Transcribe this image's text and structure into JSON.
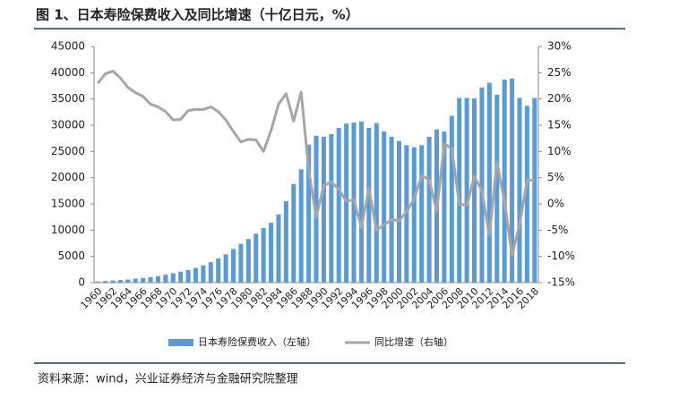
{
  "chart_data": {
    "type": "bar_line",
    "title": "图 1、日本寿险保费收入及同比增速（十亿日元，%）",
    "source": "资料来源：wind，兴业证券经济与金融研究院整理",
    "categories": [
      "1960",
      null,
      "1962",
      null,
      "1964",
      null,
      "1966",
      null,
      "1968",
      null,
      "1970",
      null,
      "1972",
      null,
      "1974",
      null,
      "1976",
      null,
      "1978",
      null,
      "1980",
      null,
      "1982",
      null,
      "1984",
      null,
      "1986",
      null,
      "1988",
      null,
      "1990",
      null,
      "1992",
      null,
      "1994",
      null,
      "1996",
      null,
      "1998",
      null,
      "2000",
      null,
      "2002",
      null,
      "2004",
      null,
      "2006",
      null,
      "2008",
      null,
      "2010",
      null,
      "2012",
      null,
      "2014",
      null,
      "2016",
      null,
      "2018"
    ],
    "series": [
      {
        "name": "日本寿险保费收入（左轴）",
        "color": "#5b9bd5",
        "kind": "bar",
        "values": [
          200,
          300,
          400,
          500,
          600,
          750,
          900,
          1050,
          1250,
          1500,
          1800,
          2100,
          2400,
          2800,
          3300,
          3900,
          4600,
          5400,
          6400,
          7400,
          8300,
          9300,
          10400,
          11400,
          13000,
          15500,
          18800,
          21600,
          26300,
          28000,
          27800,
          28300,
          29500,
          30300,
          30500,
          30700,
          29500,
          30400,
          28800,
          27800,
          27000,
          26200,
          25800,
          26200,
          27800,
          29200,
          28800,
          31800,
          35200,
          35200,
          35100,
          37200,
          38100,
          35800,
          38700,
          38900,
          35200,
          33700,
          35200
        ]
      },
      {
        "name": "同比增速（右轴）",
        "color": "#a6a6a6",
        "kind": "line",
        "axis": "y2",
        "values": [
          23,
          24.8,
          25.3,
          24,
          22.2,
          21.2,
          20.5,
          19,
          18.5,
          17.6,
          16,
          16.1,
          17.8,
          18,
          18,
          18.5,
          17.6,
          16,
          13.8,
          11.8,
          12.3,
          12.2,
          10,
          14,
          19,
          21,
          15.8,
          21.3,
          6.5,
          -2.5,
          3.5,
          4.2,
          2.8,
          0.5,
          0.8,
          -4.5,
          3,
          -5,
          -4,
          -3,
          -3.2,
          -1.5,
          1,
          5.4,
          4.6,
          -1.4,
          11.5,
          10.5,
          0,
          -0.3,
          5.3,
          2.5,
          -6,
          8,
          0.5,
          -9.8,
          -4,
          4.5,
          4.5
        ]
      }
    ],
    "ylim": [
      0,
      45000
    ],
    "yticks": [
      0,
      5000,
      10000,
      15000,
      20000,
      25000,
      30000,
      35000,
      40000,
      45000
    ],
    "y2lim": [
      -15,
      30
    ],
    "y2ticks": [
      {
        "value": -15,
        "label": "-15%"
      },
      {
        "value": -10,
        "label": "-10%"
      },
      {
        "value": -5,
        "label": "-5%"
      },
      {
        "value": 0,
        "label": "0%"
      },
      {
        "value": 5,
        "label": "5%"
      },
      {
        "value": 10,
        "label": "10%"
      },
      {
        "value": 15,
        "label": "15%"
      },
      {
        "value": 20,
        "label": "20%"
      },
      {
        "value": 25,
        "label": "25%"
      },
      {
        "value": 30,
        "label": "30%"
      }
    ]
  }
}
